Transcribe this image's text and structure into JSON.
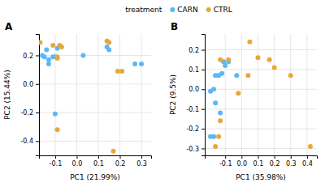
{
  "chart_data": [
    {
      "type": "scatter",
      "title": "A",
      "xlabel": "PC1 (21.99%)",
      "ylabel": "PC2 (15.44%)",
      "xlim": [
        -0.175,
        0.345
      ],
      "ylim": [
        -0.5,
        0.35
      ],
      "xticks": [
        -0.1,
        {
          "value": 0.0,
          "label": "0.0"
        },
        0.1,
        0.2,
        0.3
      ],
      "yticks": [
        -0.4,
        -0.2,
        {
          "value": 0.0,
          "label": "0.0"
        },
        0.2
      ],
      "grid": true,
      "legend": "top",
      "legend_title": "treatment",
      "series": [
        {
          "name": "CARN",
          "color": "#5BB8F5",
          "x": [
            -0.16,
            -0.13,
            -0.11,
            -0.1,
            -0.14,
            -0.09,
            -0.13,
            -0.15,
            -0.1,
            0.03,
            0.14,
            0.15,
            0.27,
            0.3
          ],
          "values": [
            0.2,
            0.17,
            0.19,
            0.19,
            0.24,
            0.25,
            0.14,
            0.19,
            -0.21,
            0.2,
            0.26,
            0.24,
            0.14,
            0.14
          ]
        },
        {
          "name": "CTRL",
          "color": "#E8A838",
          "x": [
            -0.17,
            -0.11,
            -0.08,
            -0.07,
            -0.09,
            -0.09,
            -0.09,
            0.14,
            0.15,
            0.21,
            0.19,
            0.17
          ],
          "values": [
            0.29,
            0.27,
            0.27,
            0.26,
            0.19,
            0.18,
            -0.32,
            0.3,
            0.29,
            0.09,
            0.09,
            -0.47
          ]
        }
      ]
    },
    {
      "type": "scatter",
      "title": "B",
      "xlabel": "PC1 (35.98%)",
      "ylabel": "PC2 (9.5%)",
      "xlim": [
        -0.225,
        0.46
      ],
      "ylim": [
        -0.335,
        0.28
      ],
      "xticks": [
        -0.1,
        {
          "value": 0.0,
          "label": "0.0"
        },
        0.1,
        0.2,
        0.3,
        0.4
      ],
      "yticks": [
        -0.3,
        -0.2,
        -0.1,
        {
          "value": 0.0,
          "label": "0.0"
        },
        0.1,
        0.2
      ],
      "grid": true,
      "series": [
        {
          "name": "CARN",
          "color": "#5BB8F5",
          "x": [
            -0.19,
            -0.17,
            -0.19,
            -0.17,
            -0.16,
            -0.13,
            -0.16,
            -0.14,
            -0.12,
            -0.1,
            -0.11,
            -0.08,
            -0.03
          ],
          "values": [
            -0.24,
            -0.24,
            -0.01,
            0.0,
            -0.07,
            -0.12,
            0.07,
            0.07,
            0.08,
            0.12,
            0.14,
            0.14,
            0.07
          ]
        },
        {
          "name": "CTRL",
          "color": "#E8A838",
          "x": [
            -0.16,
            -0.14,
            -0.13,
            -0.13,
            -0.08,
            -0.02,
            0.04,
            0.1,
            0.17,
            0.2,
            0.3,
            0.42,
            0.05
          ],
          "values": [
            -0.29,
            -0.24,
            -0.16,
            0.15,
            0.15,
            -0.02,
            0.07,
            0.16,
            0.15,
            0.11,
            0.07,
            -0.29,
            0.24
          ]
        }
      ]
    }
  ]
}
